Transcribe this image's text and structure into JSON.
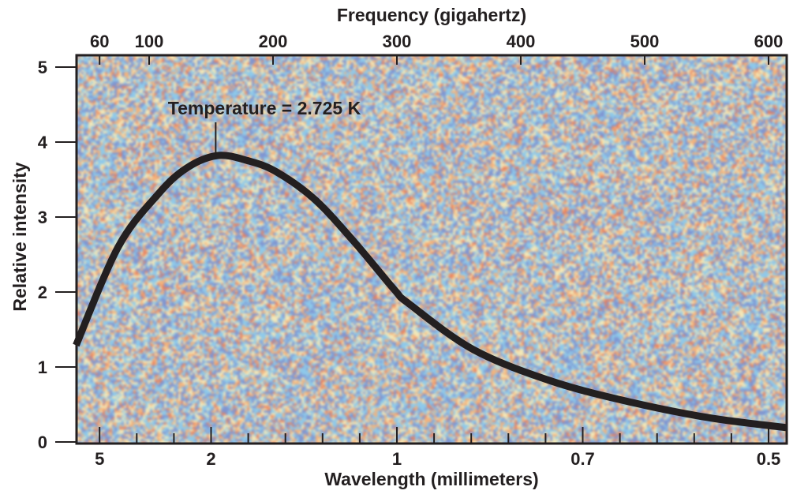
{
  "chart_data": {
    "type": "line",
    "xlabel_top": "Frequency (gigahertz)",
    "xlabel_bottom": "Wavelength (millimeters)",
    "ylabel": "Relative intensity",
    "xlim": [
      41,
      615
    ],
    "ylim": [
      0,
      5.2
    ],
    "grid": false,
    "top_ticks": [
      60,
      100,
      200,
      300,
      400,
      500,
      600
    ],
    "top_tick_labels": [
      "60",
      "100",
      "200",
      "300",
      "400",
      "500",
      "600"
    ],
    "bottom_major_ticks_ghz": [
      60,
      150,
      300,
      450,
      600
    ],
    "bottom_tick_labels": [
      "5",
      "2",
      "1",
      "0.7",
      "0.5"
    ],
    "bottom_minor_ticks_ghz": [
      90,
      120,
      180,
      210,
      240,
      270,
      330,
      360,
      390,
      420,
      480,
      510,
      540,
      570
    ],
    "y_ticks": [
      0,
      1,
      2,
      3,
      4,
      5
    ],
    "y_tick_labels": [
      "0",
      "1",
      "2",
      "3",
      "4",
      "5"
    ],
    "series": [
      {
        "color": "#231f20",
        "x": [
          41,
          75,
          107,
          130,
          155,
          180,
          203,
          234,
          266,
          298,
          310,
          362,
          425,
          489,
          553,
          615
        ],
        "y": [
          1.29,
          2.6,
          3.3,
          3.65,
          3.82,
          3.75,
          3.6,
          3.23,
          2.66,
          2.03,
          1.84,
          1.23,
          0.81,
          0.53,
          0.32,
          0.19
        ]
      }
    ],
    "annotation": {
      "text": "Temperature = 2.725  K",
      "x": 155,
      "y": 3.82
    },
    "background_colors": [
      "#7f95d1",
      "#8ec9ea",
      "#f3e8b8",
      "#f5b27a",
      "#e9805e"
    ]
  }
}
